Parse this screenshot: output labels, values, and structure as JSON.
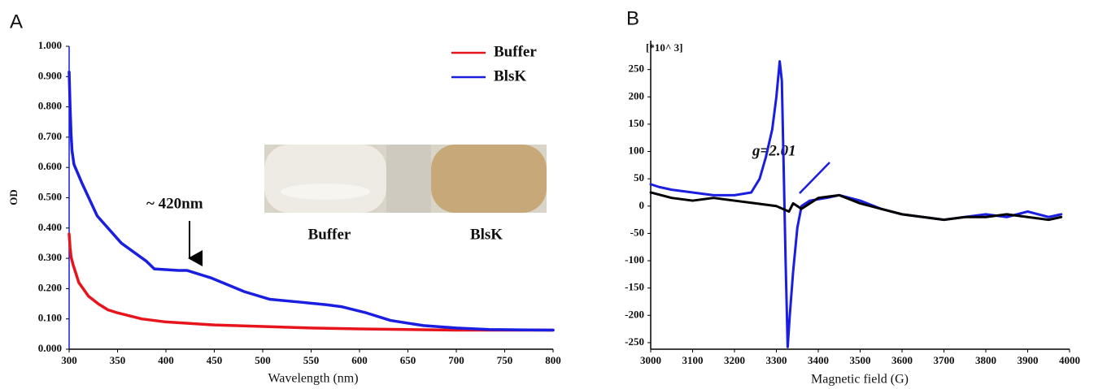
{
  "chart_data": [
    {
      "type": "line",
      "panel": "A",
      "ylabel": "OD",
      "xlabel": "Wavelength (nm)",
      "xlim": [
        300,
        800
      ],
      "xticks": [
        300,
        350,
        400,
        450,
        500,
        550,
        600,
        650,
        700,
        750,
        800
      ],
      "ylim": [
        0,
        1
      ],
      "yticks": [
        {
          "value": 0,
          "label": "0.000"
        },
        {
          "value": 0.1,
          "label": "0.100"
        },
        {
          "value": 0.2,
          "label": "0.200"
        },
        {
          "value": 0.3,
          "label": "0.300"
        },
        {
          "value": 0.4,
          "label": "0.400"
        },
        {
          "value": 0.5,
          "label": "0.500"
        },
        {
          "value": 0.6,
          "label": "0.600"
        },
        {
          "value": 0.7,
          "label": "0.700"
        },
        {
          "value": 0.8,
          "label": "0.800"
        },
        {
          "value": 0.9,
          "label": "0.900"
        },
        {
          "value": 1,
          "label": "1.000"
        }
      ],
      "legend": "upper right",
      "annotations": [
        "~ 420nm"
      ],
      "inset_labels": [
        "Buffer",
        "BlsK"
      ],
      "series": [
        {
          "name": "Buffer",
          "color": "#e8141c",
          "x": [
            300,
            301,
            302,
            304,
            310,
            320,
            330,
            340,
            350,
            375,
            400,
            450,
            500,
            550,
            600,
            700,
            800
          ],
          "values": [
            0.38,
            0.335,
            0.305,
            0.28,
            0.22,
            0.175,
            0.15,
            0.13,
            0.12,
            0.1,
            0.09,
            0.08,
            0.075,
            0.07,
            0.067,
            0.063,
            0.063
          ]
        },
        {
          "name": "BlsK",
          "color": "#1a1ee0",
          "x": [
            300,
            301,
            302,
            303,
            305,
            313,
            329,
            354,
            380,
            388,
            413,
            422,
            447,
            481,
            507,
            540,
            565,
            582,
            607,
            632,
            666,
            700,
            734,
            800
          ],
          "values": [
            0.915,
            0.8,
            0.71,
            0.655,
            0.61,
            0.55,
            0.44,
            0.35,
            0.29,
            0.265,
            0.26,
            0.26,
            0.235,
            0.19,
            0.165,
            0.155,
            0.147,
            0.14,
            0.12,
            0.095,
            0.078,
            0.07,
            0.065,
            0.063
          ]
        }
      ]
    },
    {
      "type": "line",
      "panel": "B",
      "y_unit": "[*10^ 3]",
      "xlabel": "Magnetic field (G)",
      "xlim": [
        3000,
        4000
      ],
      "xticks": [
        3000,
        3100,
        3200,
        3300,
        3400,
        3500,
        3600,
        3700,
        3800,
        3900,
        4000
      ],
      "ylim": [
        -262,
        303
      ],
      "yticks": [
        250,
        200,
        150,
        100,
        50,
        0,
        -50,
        -100,
        -150,
        -200,
        -250
      ],
      "annotations": [
        "g=2.01"
      ],
      "series": [
        {
          "color": "#1a1ee0",
          "x": [
            3000,
            3020,
            3050,
            3100,
            3150,
            3200,
            3240,
            3260,
            3275,
            3290,
            3300,
            3308,
            3313,
            3318,
            3322,
            3327,
            3332,
            3340,
            3350,
            3360,
            3380,
            3420,
            3450,
            3500,
            3550,
            3600,
            3650,
            3700,
            3750,
            3800,
            3850,
            3900,
            3950,
            3980
          ],
          "values": [
            40,
            35,
            30,
            25,
            20,
            20,
            25,
            50,
            90,
            140,
            200,
            265,
            230,
            50,
            -100,
            -258,
            -200,
            -120,
            -40,
            0,
            10,
            15,
            20,
            10,
            -5,
            -15,
            -20,
            -25,
            -20,
            -15,
            -20,
            -10,
            -20,
            -15
          ]
        },
        {
          "color": "#000000",
          "x": [
            3000,
            3050,
            3100,
            3150,
            3200,
            3250,
            3300,
            3330,
            3340,
            3360,
            3400,
            3450,
            3500,
            3550,
            3600,
            3650,
            3700,
            3750,
            3800,
            3850,
            3900,
            3950,
            3980
          ],
          "values": [
            25,
            15,
            10,
            15,
            10,
            5,
            0,
            -10,
            5,
            -5,
            15,
            20,
            5,
            -5,
            -15,
            -20,
            -25,
            -20,
            -20,
            -15,
            -20,
            -25,
            -20
          ]
        }
      ]
    }
  ]
}
